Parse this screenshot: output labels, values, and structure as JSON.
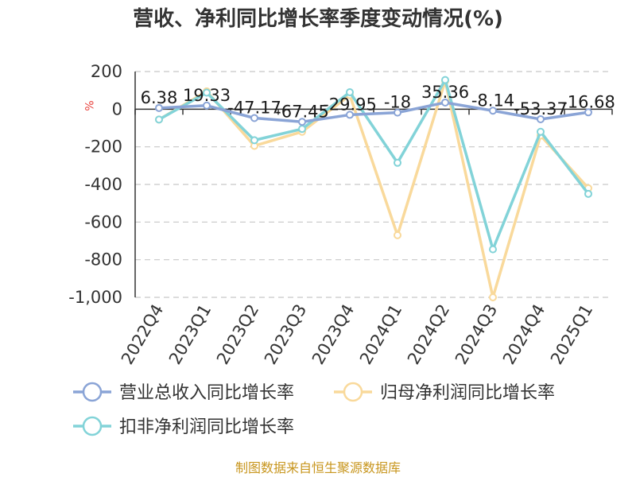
{
  "chart_data": {
    "type": "line",
    "title": "营收、净利同比增长率季度变动情况(%)",
    "ylabel": "%",
    "ylim": [
      -1000,
      200
    ],
    "yticks": [
      200,
      0,
      -200,
      -400,
      -600,
      -800,
      -1000
    ],
    "ytick_labels": [
      "200",
      "0",
      "-200",
      "-400",
      "-600",
      "-800",
      "-1,000"
    ],
    "grid": true,
    "legend_position": "bottom",
    "categories": [
      "2022Q4",
      "2023Q1",
      "2023Q2",
      "2023Q3",
      "2023Q4",
      "2024Q1",
      "2024Q2",
      "2024Q3",
      "2024Q4",
      "2025Q1"
    ],
    "series": [
      {
        "name": "营业总收入同比增长率",
        "color": "#8aa4d6",
        "values": [
          6.38,
          19.33,
          -47.17,
          -67.45,
          -29.95,
          -18,
          35.36,
          -8.14,
          -53.37,
          -16.68
        ],
        "labels": [
          "6.38",
          "19.33",
          "-47.17",
          "-67.45",
          "-29.95",
          "-18",
          "35.36",
          "-8.14",
          "-53.37",
          "-16.68"
        ]
      },
      {
        "name": "归母净利润同比增长率",
        "color": "#f9d99b",
        "values": [
          -55,
          95,
          -195,
          -120,
          75,
          -670,
          150,
          -1000,
          -140,
          -420
        ]
      },
      {
        "name": "扣非净利润同比增长率",
        "color": "#82d3d8",
        "values": [
          -55,
          88,
          -165,
          -105,
          90,
          -285,
          155,
          -745,
          -120,
          -450
        ]
      }
    ],
    "source": "制图数据来自恒生聚源数据库"
  }
}
